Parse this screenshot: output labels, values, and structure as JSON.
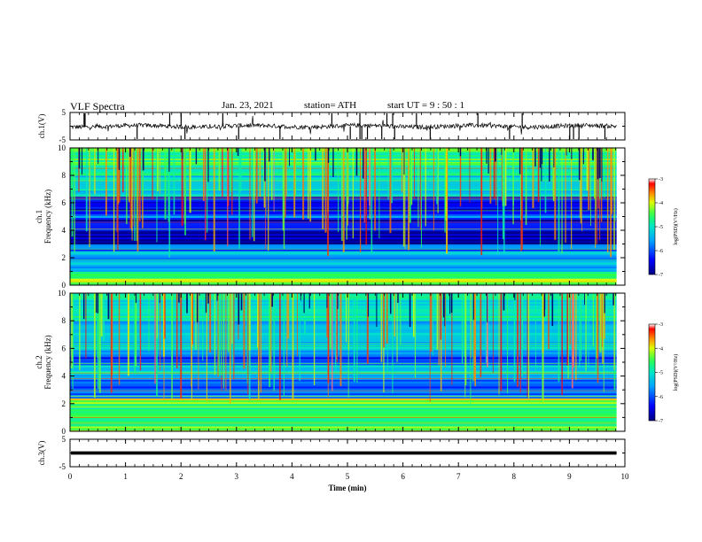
{
  "header": {
    "title": "VLF Spectra",
    "date": "Jan. 23, 2021",
    "station_label": "station= ATH",
    "start_label": "start  UT =   9 : 50 : 1"
  },
  "chart_data": [
    {
      "type": "line",
      "name": "ch1-waveform",
      "ylabel": "ch.1(V)",
      "ylim": [
        -5,
        5
      ],
      "yticks": [
        "5",
        "-5"
      ],
      "xlim": [
        0,
        10
      ],
      "baseline": 0,
      "trace_color": "#000000"
    },
    {
      "type": "heatmap",
      "name": "ch1-spectrogram",
      "xlabel": "",
      "ylabel": "ch.1\nFrequency (kHz)",
      "ylabel_lines": [
        "ch.1",
        "Frequency (kHz)"
      ],
      "xlim": [
        0,
        9.85
      ],
      "ylim": [
        0,
        10
      ],
      "yticks": [
        "0",
        "2",
        "4",
        "6",
        "8",
        "10"
      ],
      "colorbar": {
        "label": "log(PSD)(V²/Hz)",
        "range": [
          -7,
          -3
        ],
        "ticks": [
          "-3",
          "-4",
          "-5",
          "-6",
          "-7"
        ],
        "colormap": [
          "#00007f",
          "#0000ff",
          "#00bfff",
          "#00ff7f",
          "#ffff00",
          "#ff7f00",
          "#ff0000",
          "#ffffff"
        ]
      },
      "bands": [
        {
          "from": 0,
          "to": 0.5,
          "level": -4.2
        },
        {
          "from": 0.5,
          "to": 1.0,
          "level": -4.8
        },
        {
          "from": 1.0,
          "to": 2.5,
          "level": -5.5
        },
        {
          "from": 2.5,
          "to": 3.0,
          "level": -6.0
        },
        {
          "from": 3.0,
          "to": 4.0,
          "level": -6.8
        },
        {
          "from": 4.0,
          "to": 4.8,
          "level": -6.5
        },
        {
          "from": 4.8,
          "to": 5.2,
          "level": -5.8
        },
        {
          "from": 5.2,
          "to": 6.5,
          "level": -6.4
        },
        {
          "from": 6.5,
          "to": 6.8,
          "level": -5.0
        },
        {
          "from": 6.8,
          "to": 8.0,
          "level": -5.2
        },
        {
          "from": 8.0,
          "to": 10.0,
          "level": -4.7
        }
      ]
    },
    {
      "type": "heatmap",
      "name": "ch2-spectrogram",
      "xlabel": "",
      "ylabel": "ch.2\nFrequency (kHz)",
      "ylabel_lines": [
        "ch.2",
        "Frequency (kHz)"
      ],
      "xlim": [
        0,
        9.85
      ],
      "ylim": [
        0,
        10
      ],
      "yticks": [
        "0",
        "2",
        "4",
        "6",
        "8",
        "10"
      ],
      "colorbar": {
        "label": "log(PSD)(V²/Hz)",
        "range": [
          -7,
          -3
        ],
        "ticks": [
          "-3",
          "-4",
          "-5",
          "-6",
          "-7"
        ],
        "colormap": [
          "#00007f",
          "#0000ff",
          "#00bfff",
          "#00ff7f",
          "#ffff00",
          "#ff7f00",
          "#ff0000",
          "#ffffff"
        ]
      },
      "bands": [
        {
          "from": 0,
          "to": 1.0,
          "level": -4.5
        },
        {
          "from": 1.0,
          "to": 2.0,
          "level": -4.8
        },
        {
          "from": 2.0,
          "to": 2.4,
          "level": -4.2
        },
        {
          "from": 2.4,
          "to": 4.0,
          "level": -5.9
        },
        {
          "from": 4.0,
          "to": 4.8,
          "level": -5.3
        },
        {
          "from": 4.8,
          "to": 5.5,
          "level": -6.1
        },
        {
          "from": 5.5,
          "to": 8.0,
          "level": -5.4
        },
        {
          "from": 8.0,
          "to": 10.0,
          "level": -5.0
        }
      ]
    },
    {
      "type": "line",
      "name": "ch3-waveform",
      "xlabel": "Time (min)",
      "ylabel": "ch.3(V)",
      "ylim": [
        -5,
        5
      ],
      "yticks": [
        "5",
        "-5"
      ],
      "xlim": [
        0,
        10
      ],
      "xticks": [
        "0",
        "1",
        "2",
        "3",
        "4",
        "5",
        "6",
        "7",
        "8",
        "9",
        "10"
      ],
      "baseline": 0,
      "trace_color": "#000000"
    }
  ]
}
